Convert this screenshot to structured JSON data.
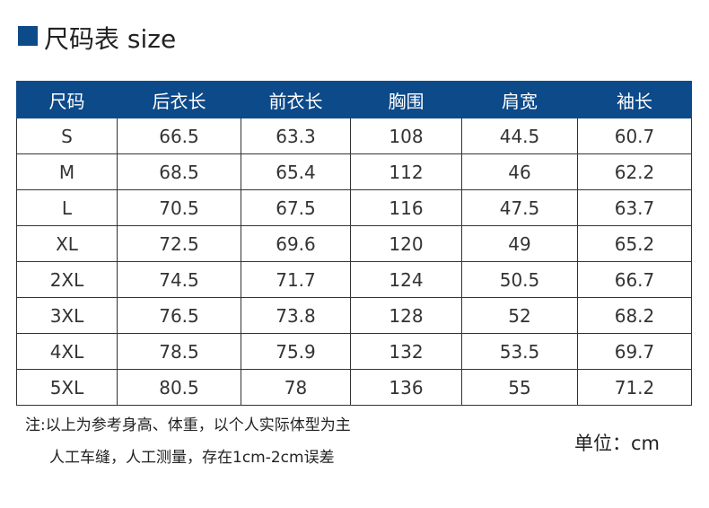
{
  "header": {
    "title": "尺码表 size"
  },
  "table": {
    "columns": [
      "尺码",
      "后衣长",
      "前衣长",
      "胸围",
      "肩宽",
      "袖长"
    ],
    "rows": [
      [
        "S",
        "66.5",
        "63.3",
        "108",
        "44.5",
        "60.7"
      ],
      [
        "M",
        "68.5",
        "65.4",
        "112",
        "46",
        "62.2"
      ],
      [
        "L",
        "70.5",
        "67.5",
        "116",
        "47.5",
        "63.7"
      ],
      [
        "XL",
        "72.5",
        "69.6",
        "120",
        "49",
        "65.2"
      ],
      [
        "2XL",
        "74.5",
        "71.7",
        "124",
        "50.5",
        "66.7"
      ],
      [
        "3XL",
        "76.5",
        "73.8",
        "128",
        "52",
        "68.2"
      ],
      [
        "4XL",
        "78.5",
        "75.9",
        "132",
        "53.5",
        "69.7"
      ],
      [
        "5XL",
        "80.5",
        "78",
        "136",
        "55",
        "71.2"
      ]
    ]
  },
  "note": [
    "注:以上为参考身高、体重，以个人实际体型为主",
    "人工车缝，人工测量，存在1cm-2cm误差"
  ],
  "unit": "单位：cm"
}
